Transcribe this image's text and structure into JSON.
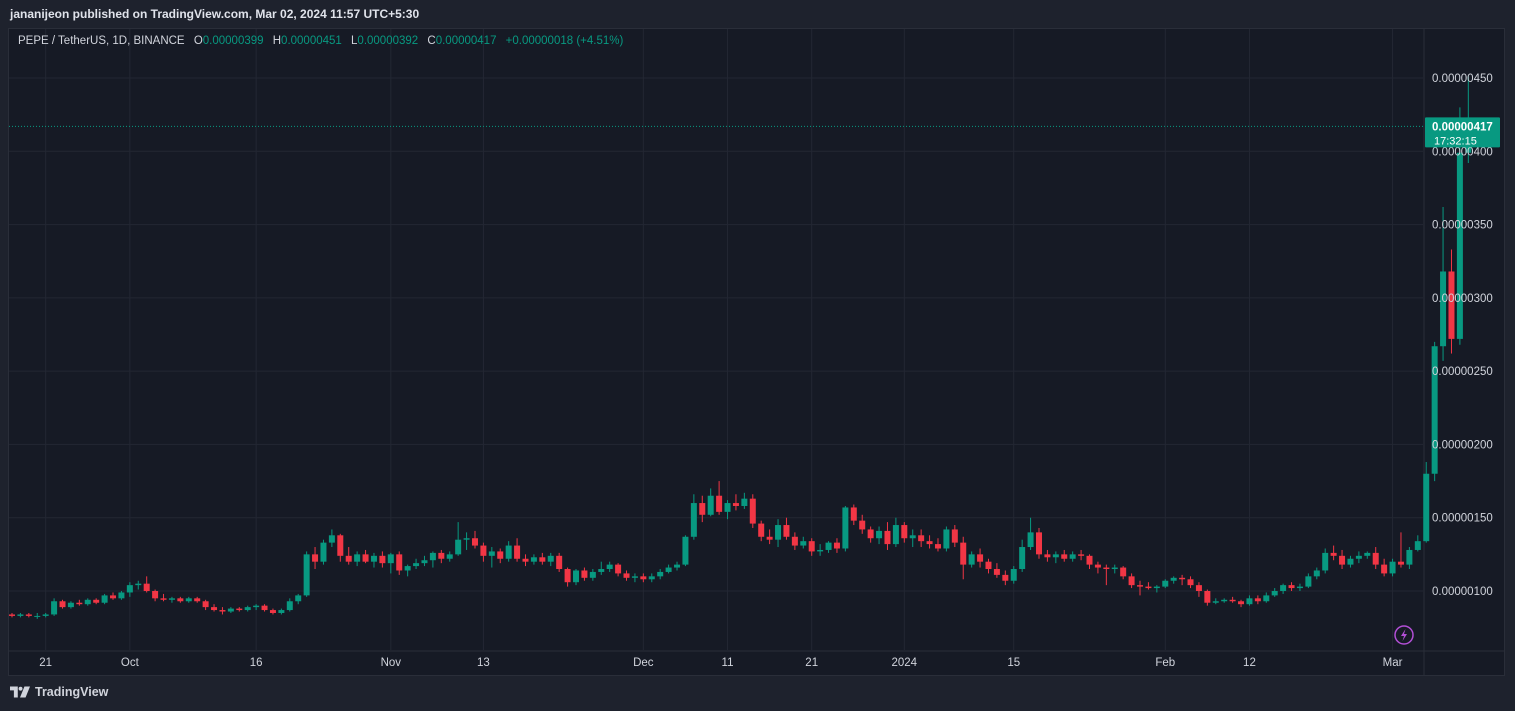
{
  "header": {
    "published_line": "jananijeon published on TradingView.com, Mar 02, 2024 11:57 UTC+5:30"
  },
  "legend": {
    "symbol": "PEPE / TetherUS, 1D, BINANCE",
    "open_label": "O",
    "open": "0.00000399",
    "high_label": "H",
    "high": "0.00000451",
    "low_label": "L",
    "low": "0.00000392",
    "close_label": "C",
    "close": "0.00000417",
    "change": "+0.00000018 (+4.51%)"
  },
  "price_tag": {
    "price": "0.00000417",
    "countdown": "17:32:15"
  },
  "footer": {
    "brand": "TradingView"
  },
  "colors": {
    "up": "#089981",
    "down": "#f23645",
    "grid": "#232733",
    "text": "#d1d4dc"
  },
  "icons": [
    "lightning-icon",
    "tradingview-logo-icon"
  ],
  "chart_data": {
    "type": "candlestick",
    "ylim": [
      7.8e-07,
      4.75e-06
    ],
    "y_ticks": [
      "0.00000100",
      "0.00000150",
      "0.00000200",
      "0.00000250",
      "0.00000300",
      "0.00000350",
      "0.00000400",
      "0.00000450"
    ],
    "y_tick_values": [
      1e-06,
      1.5e-06,
      2e-06,
      2.5e-06,
      3e-06,
      3.5e-06,
      4e-06,
      4.5e-06
    ],
    "x_ticks": [
      "21",
      "Oct",
      "16",
      "Nov",
      "13",
      "Dec",
      "11",
      "21",
      "2024",
      "15",
      "Feb",
      "12",
      "Mar"
    ],
    "x_tick_index": [
      4,
      14,
      29,
      45,
      56,
      75,
      85,
      95,
      106,
      119,
      137,
      147,
      164
    ],
    "candles_ohlc": [
      [
        8.4e-07,
        8.5e-07,
        8.2e-07,
        8.3e-07
      ],
      [
        8.3e-07,
        8.5e-07,
        8.2e-07,
        8.4e-07
      ],
      [
        8.4e-07,
        8.5e-07,
        8.2e-07,
        8.3e-07
      ],
      [
        8.3e-07,
        8.5e-07,
        8.1e-07,
        8.3e-07
      ],
      [
        8.3e-07,
        8.5e-07,
        8.2e-07,
        8.4e-07
      ],
      [
        8.4e-07,
        9.5e-07,
        8.3e-07,
        9.3e-07
      ],
      [
        9.3e-07,
        9.4e-07,
        8.8e-07,
        8.9e-07
      ],
      [
        8.9e-07,
        9.3e-07,
        8.8e-07,
        9.2e-07
      ],
      [
        9.2e-07,
        9.4e-07,
        9e-07,
        9.1e-07
      ],
      [
        9.1e-07,
        9.5e-07,
        9e-07,
        9.4e-07
      ],
      [
        9.4e-07,
        9.5e-07,
        9.1e-07,
        9.2e-07
      ],
      [
        9.2e-07,
        9.8e-07,
        9.1e-07,
        9.7e-07
      ],
      [
        9.7e-07,
        9.9e-07,
        9.4e-07,
        9.5e-07
      ],
      [
        9.5e-07,
        1e-06,
        9.4e-07,
        9.9e-07
      ],
      [
        9.9e-07,
        1.06e-06,
        9.6e-07,
        1.04e-06
      ],
      [
        1.04e-06,
        1.07e-06,
        1.01e-06,
        1.05e-06
      ],
      [
        1.05e-06,
        1.1e-06,
        9.9e-07,
        1e-06
      ],
      [
        1e-06,
        1.01e-06,
        9.3e-07,
        9.5e-07
      ],
      [
        9.5e-07,
        9.8e-07,
        9.3e-07,
        9.4e-07
      ],
      [
        9.4e-07,
        9.6e-07,
        9.2e-07,
        9.5e-07
      ],
      [
        9.5e-07,
        9.6e-07,
        9.2e-07,
        9.3e-07
      ],
      [
        9.3e-07,
        9.6e-07,
        9.2e-07,
        9.5e-07
      ],
      [
        9.5e-07,
        9.6e-07,
        9.2e-07,
        9.3e-07
      ],
      [
        9.3e-07,
        9.4e-07,
        8.7e-07,
        8.9e-07
      ],
      [
        8.9e-07,
        9.1e-07,
        8.6e-07,
        8.7e-07
      ],
      [
        8.7e-07,
        8.9e-07,
        8.4e-07,
        8.6e-07
      ],
      [
        8.6e-07,
        8.9e-07,
        8.5e-07,
        8.8e-07
      ],
      [
        8.8e-07,
        8.9e-07,
        8.6e-07,
        8.7e-07
      ],
      [
        8.7e-07,
        9e-07,
        8.6e-07,
        8.9e-07
      ],
      [
        8.9e-07,
        9.1e-07,
        8.7e-07,
        9e-07
      ],
      [
        9e-07,
        9.1e-07,
        8.6e-07,
        8.7e-07
      ],
      [
        8.7e-07,
        8.8e-07,
        8.4e-07,
        8.5e-07
      ],
      [
        8.5e-07,
        8.8e-07,
        8.4e-07,
        8.7e-07
      ],
      [
        8.7e-07,
        9.5e-07,
        8.6e-07,
        9.3e-07
      ],
      [
        9.3e-07,
        9.8e-07,
        9.1e-07,
        9.7e-07
      ],
      [
        9.7e-07,
        1.27e-06,
        9.6e-07,
        1.25e-06
      ],
      [
        1.25e-06,
        1.3e-06,
        1.15e-06,
        1.2e-06
      ],
      [
        1.2e-06,
        1.35e-06,
        1.18e-06,
        1.33e-06
      ],
      [
        1.33e-06,
        1.42e-06,
        1.3e-06,
        1.38e-06
      ],
      [
        1.38e-06,
        1.39e-06,
        1.2e-06,
        1.24e-06
      ],
      [
        1.24e-06,
        1.3e-06,
        1.18e-06,
        1.2e-06
      ],
      [
        1.2e-06,
        1.27e-06,
        1.17e-06,
        1.25e-06
      ],
      [
        1.25e-06,
        1.28e-06,
        1.19e-06,
        1.2e-06
      ],
      [
        1.2e-06,
        1.26e-06,
        1.16e-06,
        1.24e-06
      ],
      [
        1.24e-06,
        1.27e-06,
        1.16e-06,
        1.19e-06
      ],
      [
        1.19e-06,
        1.26e-06,
        1.12e-06,
        1.25e-06
      ],
      [
        1.25e-06,
        1.27e-06,
        1.11e-06,
        1.14e-06
      ],
      [
        1.14e-06,
        1.18e-06,
        1.1e-06,
        1.17e-06
      ],
      [
        1.17e-06,
        1.22e-06,
        1.15e-06,
        1.19e-06
      ],
      [
        1.19e-06,
        1.24e-06,
        1.17e-06,
        1.21e-06
      ],
      [
        1.21e-06,
        1.27e-06,
        1.16e-06,
        1.26e-06
      ],
      [
        1.26e-06,
        1.28e-06,
        1.19e-06,
        1.22e-06
      ],
      [
        1.22e-06,
        1.27e-06,
        1.2e-06,
        1.25e-06
      ],
      [
        1.25e-06,
        1.47e-06,
        1.24e-06,
        1.35e-06
      ],
      [
        1.35e-06,
        1.4e-06,
        1.28e-06,
        1.36e-06
      ],
      [
        1.36e-06,
        1.41e-06,
        1.29e-06,
        1.31e-06
      ],
      [
        1.31e-06,
        1.33e-06,
        1.2e-06,
        1.24e-06
      ],
      [
        1.24e-06,
        1.3e-06,
        1.16e-06,
        1.27e-06
      ],
      [
        1.27e-06,
        1.29e-06,
        1.19e-06,
        1.22e-06
      ],
      [
        1.22e-06,
        1.34e-06,
        1.2e-06,
        1.31e-06
      ],
      [
        1.31e-06,
        1.36e-06,
        1.2e-06,
        1.22e-06
      ],
      [
        1.22e-06,
        1.25e-06,
        1.17e-06,
        1.2e-06
      ],
      [
        1.2e-06,
        1.25e-06,
        1.18e-06,
        1.23e-06
      ],
      [
        1.23e-06,
        1.26e-06,
        1.18e-06,
        1.2e-06
      ],
      [
        1.2e-06,
        1.26e-06,
        1.17e-06,
        1.24e-06
      ],
      [
        1.24e-06,
        1.26e-06,
        1.13e-06,
        1.15e-06
      ],
      [
        1.15e-06,
        1.16e-06,
        1.03e-06,
        1.06e-06
      ],
      [
        1.06e-06,
        1.15e-06,
        1.04e-06,
        1.14e-06
      ],
      [
        1.14e-06,
        1.16e-06,
        1.07e-06,
        1.09e-06
      ],
      [
        1.09e-06,
        1.15e-06,
        1.07e-06,
        1.13e-06
      ],
      [
        1.13e-06,
        1.2e-06,
        1.11e-06,
        1.15e-06
      ],
      [
        1.15e-06,
        1.2e-06,
        1.13e-06,
        1.18e-06
      ],
      [
        1.18e-06,
        1.19e-06,
        1.1e-06,
        1.12e-06
      ],
      [
        1.12e-06,
        1.14e-06,
        1.07e-06,
        1.09e-06
      ],
      [
        1.09e-06,
        1.12e-06,
        1.06e-06,
        1.1e-06
      ],
      [
        1.1e-06,
        1.12e-06,
        1.06e-06,
        1.08e-06
      ],
      [
        1.08e-06,
        1.12e-06,
        1.06e-06,
        1.1e-06
      ],
      [
        1.1e-06,
        1.15e-06,
        1.08e-06,
        1.13e-06
      ],
      [
        1.13e-06,
        1.18e-06,
        1.12e-06,
        1.16e-06
      ],
      [
        1.16e-06,
        1.2e-06,
        1.14e-06,
        1.18e-06
      ],
      [
        1.18e-06,
        1.38e-06,
        1.17e-06,
        1.37e-06
      ],
      [
        1.37e-06,
        1.66e-06,
        1.35e-06,
        1.6e-06
      ],
      [
        1.6e-06,
        1.65e-06,
        1.47e-06,
        1.52e-06
      ],
      [
        1.52e-06,
        1.7e-06,
        1.51e-06,
        1.65e-06
      ],
      [
        1.65e-06,
        1.75e-06,
        1.52e-06,
        1.54e-06
      ],
      [
        1.54e-06,
        1.62e-06,
        1.49e-06,
        1.6e-06
      ],
      [
        1.6e-06,
        1.66e-06,
        1.55e-06,
        1.58e-06
      ],
      [
        1.58e-06,
        1.67e-06,
        1.56e-06,
        1.63e-06
      ],
      [
        1.63e-06,
        1.66e-06,
        1.43e-06,
        1.46e-06
      ],
      [
        1.46e-06,
        1.48e-06,
        1.34e-06,
        1.37e-06
      ],
      [
        1.37e-06,
        1.42e-06,
        1.32e-06,
        1.35e-06
      ],
      [
        1.35e-06,
        1.49e-06,
        1.3e-06,
        1.45e-06
      ],
      [
        1.45e-06,
        1.5e-06,
        1.35e-06,
        1.37e-06
      ],
      [
        1.37e-06,
        1.4e-06,
        1.28e-06,
        1.31e-06
      ],
      [
        1.31e-06,
        1.37e-06,
        1.29e-06,
        1.34e-06
      ],
      [
        1.34e-06,
        1.36e-06,
        1.24e-06,
        1.27e-06
      ],
      [
        1.27e-06,
        1.32e-06,
        1.24e-06,
        1.28e-06
      ],
      [
        1.28e-06,
        1.34e-06,
        1.26e-06,
        1.33e-06
      ],
      [
        1.33e-06,
        1.36e-06,
        1.26e-06,
        1.29e-06
      ],
      [
        1.29e-06,
        1.58e-06,
        1.27e-06,
        1.57e-06
      ],
      [
        1.57e-06,
        1.59e-06,
        1.45e-06,
        1.48e-06
      ],
      [
        1.48e-06,
        1.52e-06,
        1.39e-06,
        1.42e-06
      ],
      [
        1.42e-06,
        1.44e-06,
        1.33e-06,
        1.36e-06
      ],
      [
        1.36e-06,
        1.44e-06,
        1.32e-06,
        1.41e-06
      ],
      [
        1.41e-06,
        1.47e-06,
        1.28e-06,
        1.32e-06
      ],
      [
        1.32e-06,
        1.5e-06,
        1.3e-06,
        1.45e-06
      ],
      [
        1.45e-06,
        1.47e-06,
        1.33e-06,
        1.36e-06
      ],
      [
        1.36e-06,
        1.42e-06,
        1.3e-06,
        1.38e-06
      ],
      [
        1.38e-06,
        1.42e-06,
        1.3e-06,
        1.34e-06
      ],
      [
        1.34e-06,
        1.38e-06,
        1.29e-06,
        1.32e-06
      ],
      [
        1.32e-06,
        1.36e-06,
        1.27e-06,
        1.29e-06
      ],
      [
        1.29e-06,
        1.44e-06,
        1.27e-06,
        1.42e-06
      ],
      [
        1.42e-06,
        1.45e-06,
        1.3e-06,
        1.33e-06
      ],
      [
        1.33e-06,
        1.37e-06,
        1.08e-06,
        1.18e-06
      ],
      [
        1.18e-06,
        1.27e-06,
        1.16e-06,
        1.25e-06
      ],
      [
        1.25e-06,
        1.29e-06,
        1.16e-06,
        1.2e-06
      ],
      [
        1.2e-06,
        1.22e-06,
        1.12e-06,
        1.15e-06
      ],
      [
        1.15e-06,
        1.19e-06,
        1.09e-06,
        1.11e-06
      ],
      [
        1.11e-06,
        1.14e-06,
        1.04e-06,
        1.07e-06
      ],
      [
        1.07e-06,
        1.17e-06,
        1.05e-06,
        1.15e-06
      ],
      [
        1.15e-06,
        1.35e-06,
        1.13e-06,
        1.3e-06
      ],
      [
        1.3e-06,
        1.5e-06,
        1.28e-06,
        1.4e-06
      ],
      [
        1.4e-06,
        1.43e-06,
        1.22e-06,
        1.25e-06
      ],
      [
        1.25e-06,
        1.28e-06,
        1.2e-06,
        1.23e-06
      ],
      [
        1.23e-06,
        1.27e-06,
        1.19e-06,
        1.25e-06
      ],
      [
        1.25e-06,
        1.28e-06,
        1.2e-06,
        1.22e-06
      ],
      [
        1.22e-06,
        1.27e-06,
        1.2e-06,
        1.25e-06
      ],
      [
        1.25e-06,
        1.28e-06,
        1.21e-06,
        1.24e-06
      ],
      [
        1.24e-06,
        1.25e-06,
        1.15e-06,
        1.18e-06
      ],
      [
        1.18e-06,
        1.2e-06,
        1.12e-06,
        1.16e-06
      ],
      [
        1.16e-06,
        1.18e-06,
        1.04e-06,
        1.15e-06
      ],
      [
        1.15e-06,
        1.18e-06,
        1.12e-06,
        1.16e-06
      ],
      [
        1.16e-06,
        1.17e-06,
        1.08e-06,
        1.1e-06
      ],
      [
        1.1e-06,
        1.12e-06,
        1.02e-06,
        1.04e-06
      ],
      [
        1.04e-06,
        1.07e-06,
        9.7e-07,
        1.03e-06
      ],
      [
        1.03e-06,
        1.06e-06,
        1.01e-06,
        1.02e-06
      ],
      [
        1.02e-06,
        1.04e-06,
        9.9e-07,
        1.03e-06
      ],
      [
        1.03e-06,
        1.08e-06,
        1.02e-06,
        1.07e-06
      ],
      [
        1.07e-06,
        1.1e-06,
        1.05e-06,
        1.09e-06
      ],
      [
        1.09e-06,
        1.11e-06,
        1.04e-06,
        1.08e-06
      ],
      [
        1.08e-06,
        1.1e-06,
        1.02e-06,
        1.04e-06
      ],
      [
        1.04e-06,
        1.06e-06,
        9.6e-07,
        1e-06
      ],
      [
        1e-06,
        1.01e-06,
        9e-07,
        9.2e-07
      ],
      [
        9.2e-07,
        9.5e-07,
        9.1e-07,
        9.3e-07
      ],
      [
        9.3e-07,
        9.5e-07,
        9.2e-07,
        9.4e-07
      ],
      [
        9.4e-07,
        9.6e-07,
        9.2e-07,
        9.3e-07
      ],
      [
        9.3e-07,
        9.4e-07,
        8.9e-07,
        9.1e-07
      ],
      [
        9.1e-07,
        9.7e-07,
        9e-07,
        9.5e-07
      ],
      [
        9.5e-07,
        9.7e-07,
        9.1e-07,
        9.3e-07
      ],
      [
        9.3e-07,
        9.9e-07,
        9.2e-07,
        9.7e-07
      ],
      [
        9.7e-07,
        1.02e-06,
        9.6e-07,
        1e-06
      ],
      [
        1e-06,
        1.05e-06,
        9.8e-07,
        1.04e-06
      ],
      [
        1.04e-06,
        1.06e-06,
        1e-06,
        1.02e-06
      ],
      [
        1.02e-06,
        1.05e-06,
        1e-06,
        1.03e-06
      ],
      [
        1.03e-06,
        1.12e-06,
        1.02e-06,
        1.1e-06
      ],
      [
        1.1e-06,
        1.16e-06,
        1.08e-06,
        1.14e-06
      ],
      [
        1.14e-06,
        1.29e-06,
        1.12e-06,
        1.26e-06
      ],
      [
        1.26e-06,
        1.31e-06,
        1.21e-06,
        1.24e-06
      ],
      [
        1.24e-06,
        1.28e-06,
        1.15e-06,
        1.18e-06
      ],
      [
        1.18e-06,
        1.24e-06,
        1.16e-06,
        1.22e-06
      ],
      [
        1.22e-06,
        1.27e-06,
        1.19e-06,
        1.24e-06
      ],
      [
        1.24e-06,
        1.27e-06,
        1.22e-06,
        1.26e-06
      ],
      [
        1.26e-06,
        1.3e-06,
        1.15e-06,
        1.18e-06
      ],
      [
        1.18e-06,
        1.22e-06,
        1.1e-06,
        1.12e-06
      ],
      [
        1.12e-06,
        1.22e-06,
        1.1e-06,
        1.2e-06
      ],
      [
        1.2e-06,
        1.4e-06,
        1.16e-06,
        1.18e-06
      ],
      [
        1.18e-06,
        1.3e-06,
        1.15e-06,
        1.28e-06
      ],
      [
        1.28e-06,
        1.38e-06,
        1.27e-06,
        1.34e-06
      ],
      [
        1.34e-06,
        1.88e-06,
        1.33e-06,
        1.8e-06
      ],
      [
        1.8e-06,
        2.7e-06,
        1.75e-06,
        2.67e-06
      ],
      [
        2.67e-06,
        3.62e-06,
        2.57e-06,
        3.18e-06
      ],
      [
        3.18e-06,
        3.33e-06,
        2.62e-06,
        2.72e-06
      ],
      [
        2.72e-06,
        4.3e-06,
        2.68e-06,
        3.99e-06
      ],
      [
        3.99e-06,
        4.51e-06,
        3.92e-06,
        4.17e-06
      ]
    ]
  }
}
